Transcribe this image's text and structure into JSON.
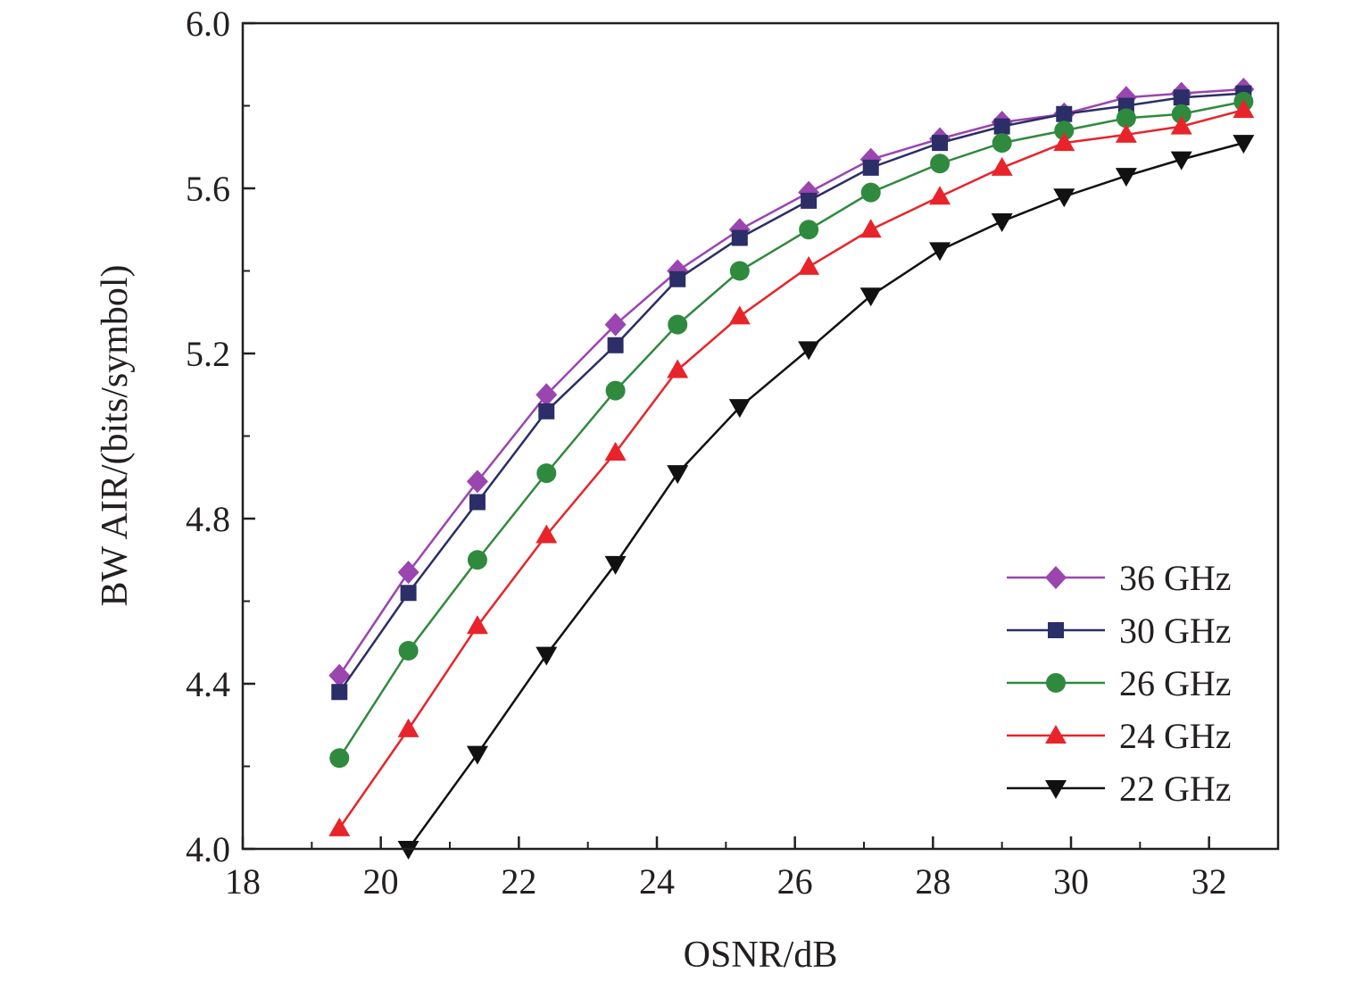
{
  "chart_data": {
    "type": "line",
    "title": "",
    "xlabel": "OSNR/dB",
    "ylabel": "BW AIR/(bits/symbol)",
    "xlim": [
      18,
      33
    ],
    "ylim": [
      4.0,
      6.0
    ],
    "x_ticks": [
      18,
      20,
      22,
      24,
      26,
      28,
      30,
      32
    ],
    "y_ticks": [
      4.0,
      4.4,
      4.8,
      5.2,
      5.6,
      6.0
    ],
    "y_tick_labels": [
      "4.0",
      "4.4",
      "4.8",
      "5.2",
      "5.6",
      "6.0"
    ],
    "grid": false,
    "legend_position": "bottom-right",
    "x": [
      19.4,
      20.4,
      21.4,
      22.4,
      23.4,
      24.3,
      25.2,
      26.2,
      27.1,
      28.1,
      29.0,
      29.9,
      30.8,
      31.6,
      32.5
    ],
    "series": [
      {
        "name": "36 GHz",
        "color": "#9b45b0",
        "marker": "diamond",
        "values": [
          4.42,
          4.67,
          4.89,
          5.1,
          5.27,
          5.4,
          5.5,
          5.59,
          5.67,
          5.72,
          5.76,
          5.78,
          5.82,
          5.83,
          5.84
        ]
      },
      {
        "name": "30 GHz",
        "color": "#2b2e67",
        "marker": "square",
        "values": [
          4.38,
          4.62,
          4.84,
          5.06,
          5.22,
          5.38,
          5.48,
          5.57,
          5.65,
          5.71,
          5.75,
          5.78,
          5.8,
          5.82,
          5.83
        ]
      },
      {
        "name": "26 GHz",
        "color": "#2f8a3e",
        "marker": "circle",
        "values": [
          4.22,
          4.48,
          4.7,
          4.91,
          5.11,
          5.27,
          5.4,
          5.5,
          5.59,
          5.66,
          5.71,
          5.74,
          5.77,
          5.78,
          5.81
        ]
      },
      {
        "name": "24 GHz",
        "color": "#e8242a",
        "marker": "triangle-up",
        "values": [
          4.05,
          4.29,
          4.54,
          4.76,
          4.96,
          5.16,
          5.29,
          5.41,
          5.5,
          5.58,
          5.65,
          5.71,
          5.73,
          5.75,
          5.79
        ]
      },
      {
        "name": "22 GHz",
        "color": "#111111",
        "marker": "triangle-down",
        "values": [
          null,
          4.0,
          4.23,
          4.47,
          4.69,
          4.91,
          5.07,
          5.21,
          5.34,
          5.45,
          5.52,
          5.58,
          5.63,
          5.67,
          5.71
        ]
      }
    ]
  }
}
